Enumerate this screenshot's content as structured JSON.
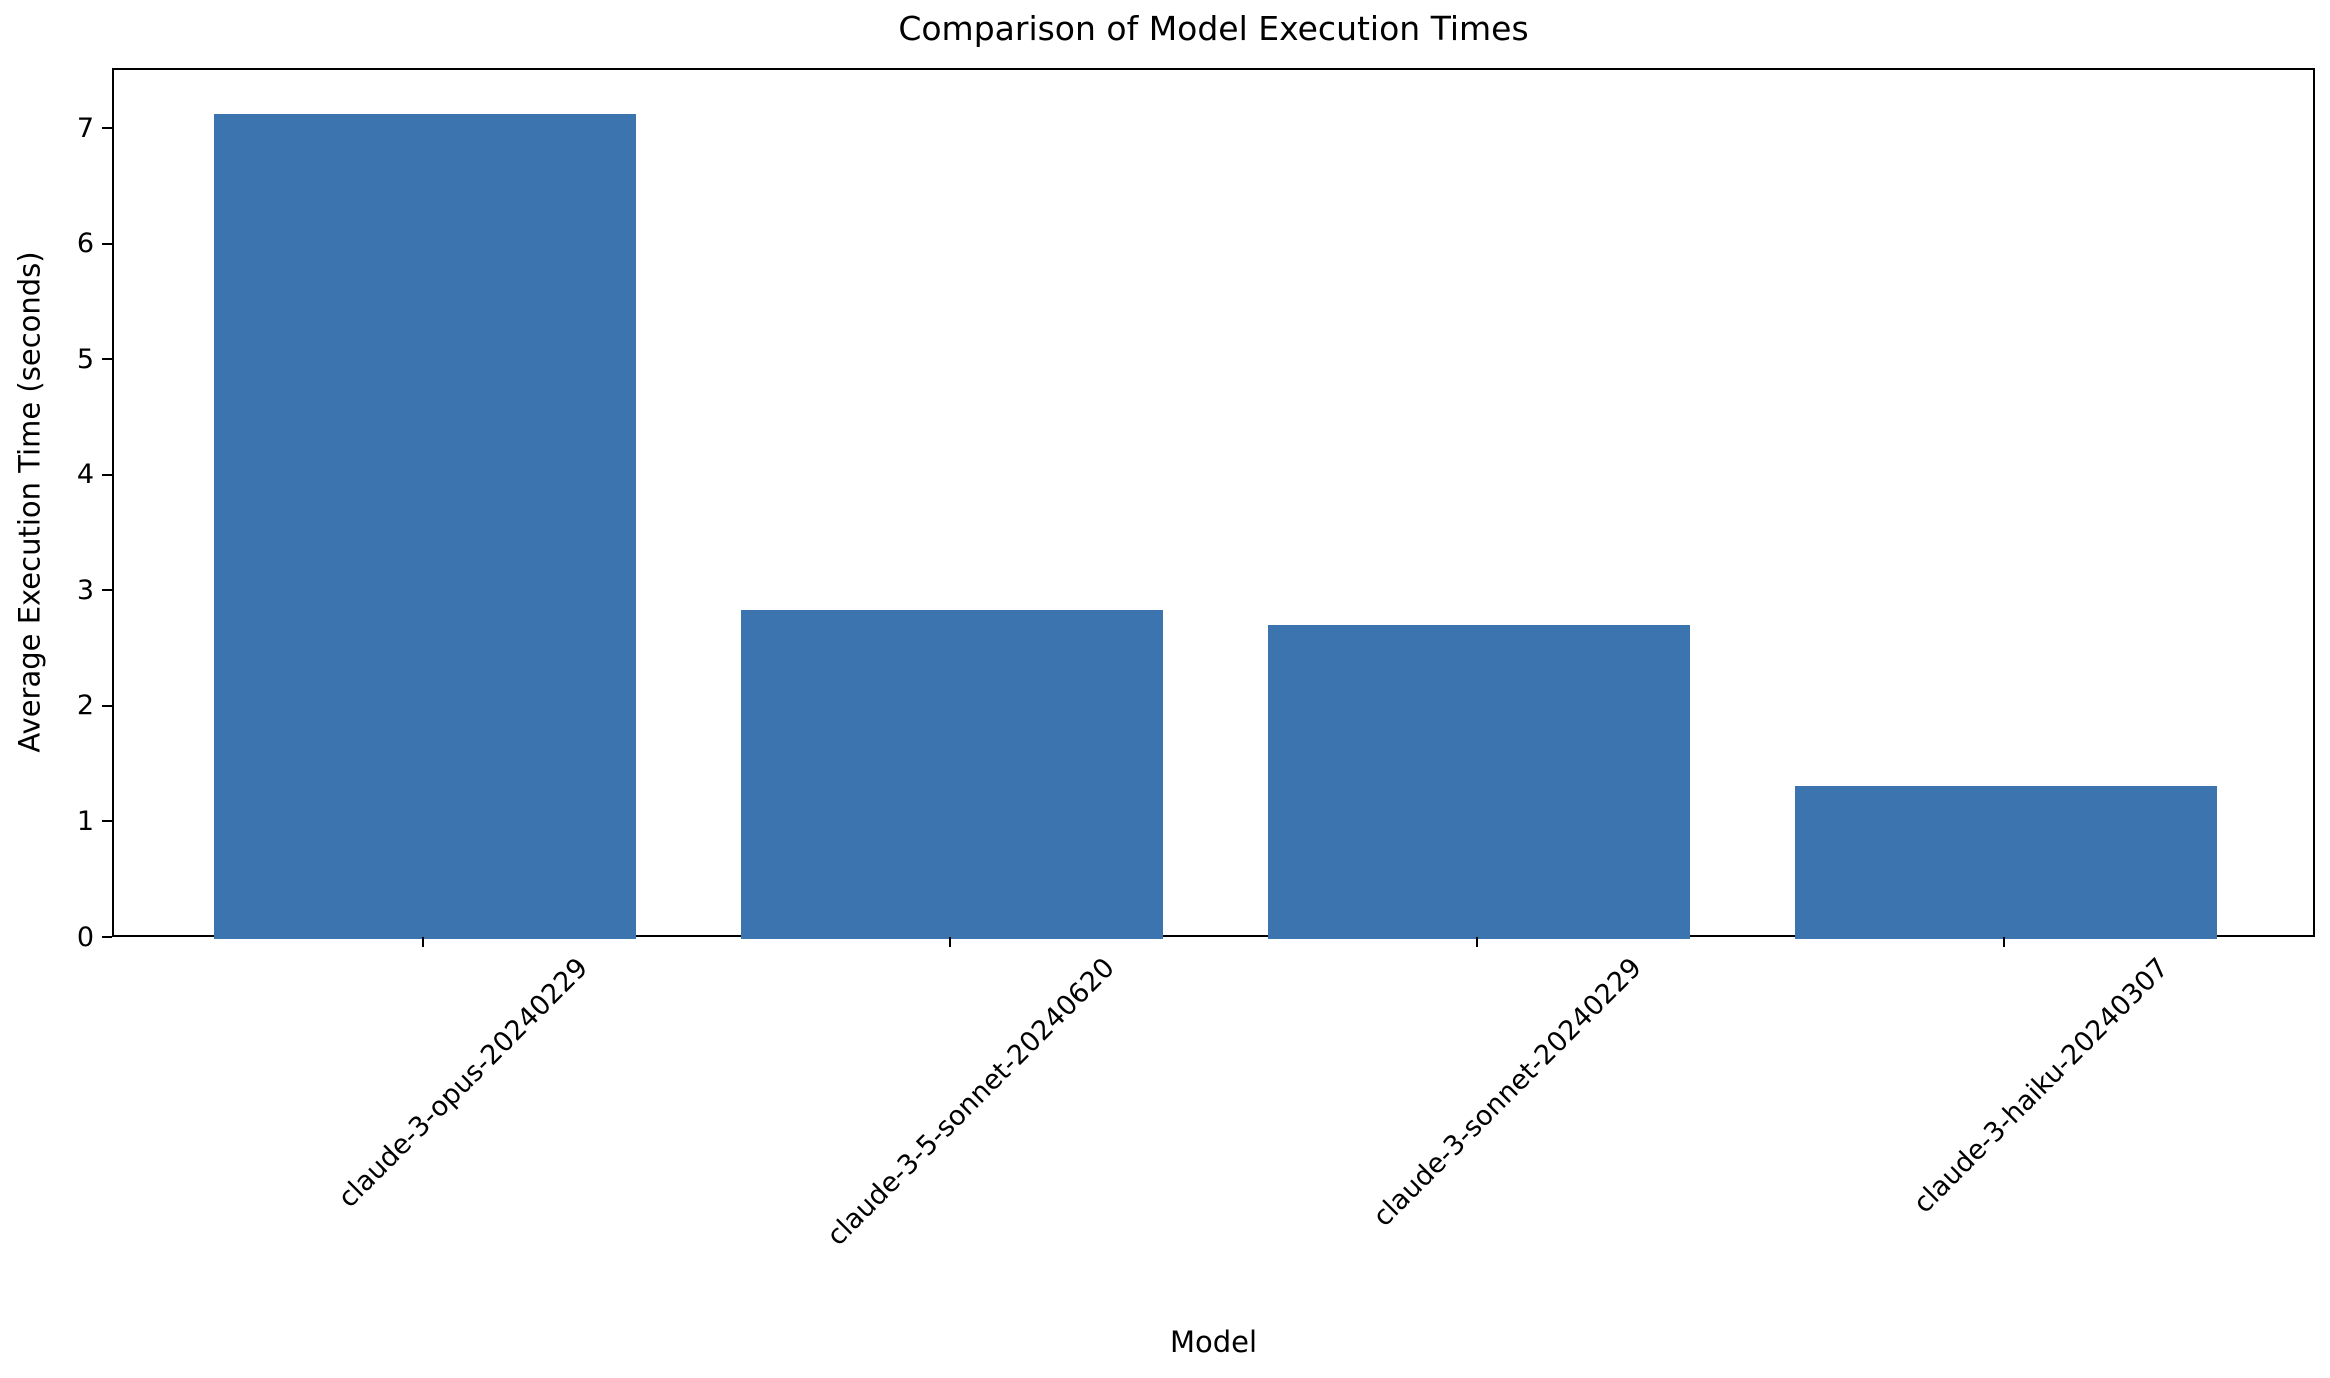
{
  "chart_data": {
    "type": "bar",
    "title": "Comparison of Model Execution Times",
    "xlabel": "Model",
    "ylabel": "Average Execution Time (seconds)",
    "categories": [
      "claude-3-opus-20240229",
      "claude-3-5-sonnet-20240620",
      "claude-3-sonnet-20240229",
      "claude-3-haiku-20240307"
    ],
    "values": [
      7.14,
      2.85,
      2.72,
      1.32
    ],
    "yticks": [
      0,
      1,
      2,
      3,
      4,
      5,
      6,
      7
    ],
    "ylim": [
      0,
      7.52
    ],
    "bar_color": "#3C74B0",
    "background_color": "#FFFFFF",
    "text_color": "#000000",
    "grid": false,
    "legend": "none",
    "x_tick_rotation_deg": 45
  }
}
